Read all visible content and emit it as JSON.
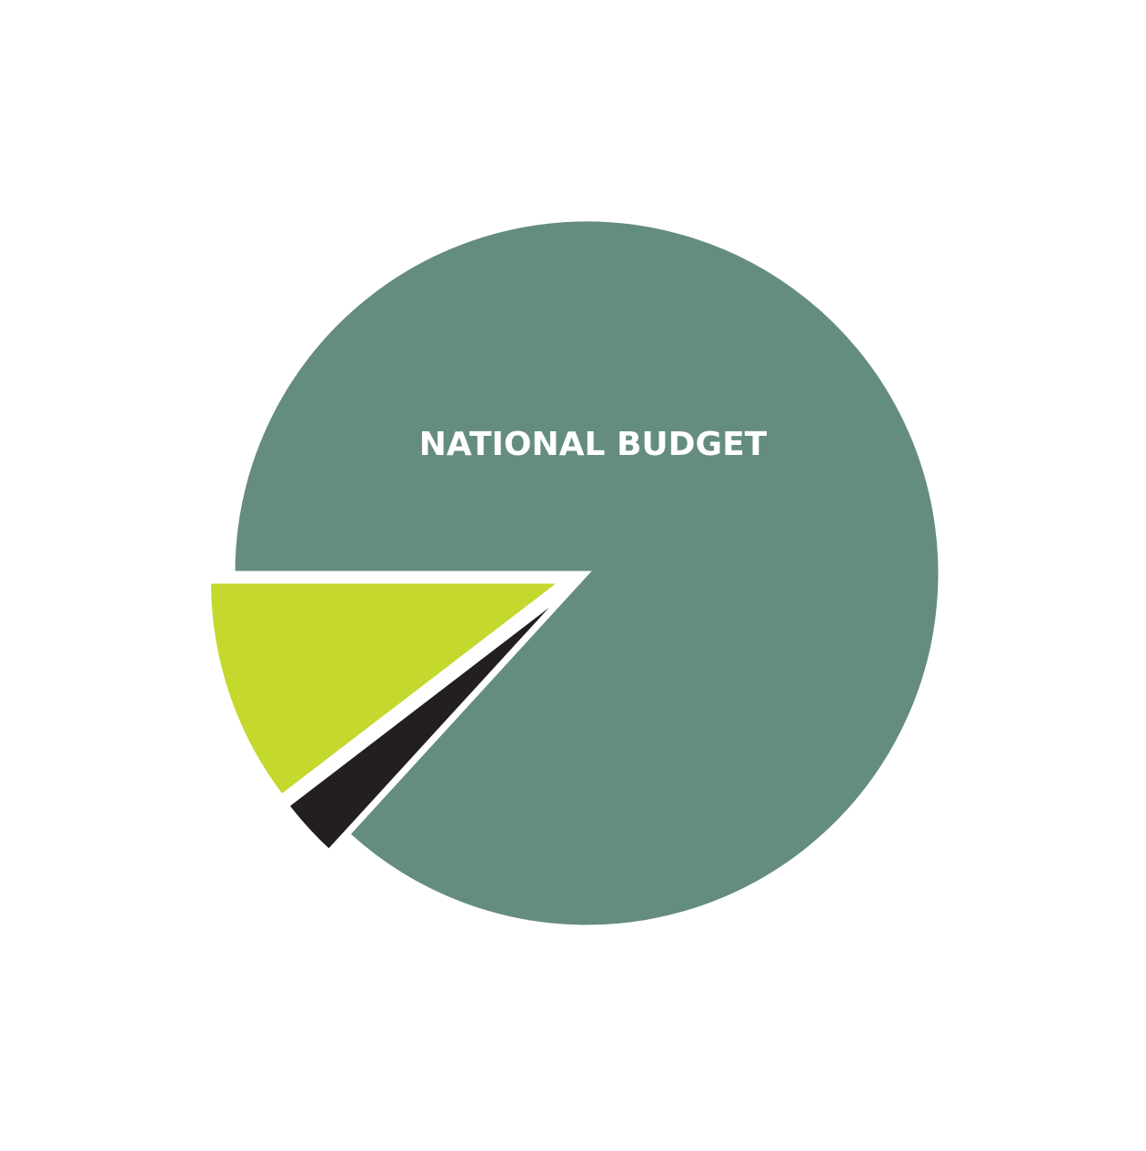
{
  "chart_data": {
    "type": "pie",
    "title": "",
    "slices": [
      {
        "label": "NATIONAL BUDGET",
        "value": 86.8,
        "color": "#658c80",
        "exploded": false
      },
      {
        "label": "",
        "value": 2.8,
        "color": "#231f20",
        "exploded": true
      },
      {
        "label": "",
        "value": 10.4,
        "color": "#c4d82e",
        "exploded": true
      }
    ],
    "separator_color": "#ffffff",
    "background": "#ffffff"
  }
}
